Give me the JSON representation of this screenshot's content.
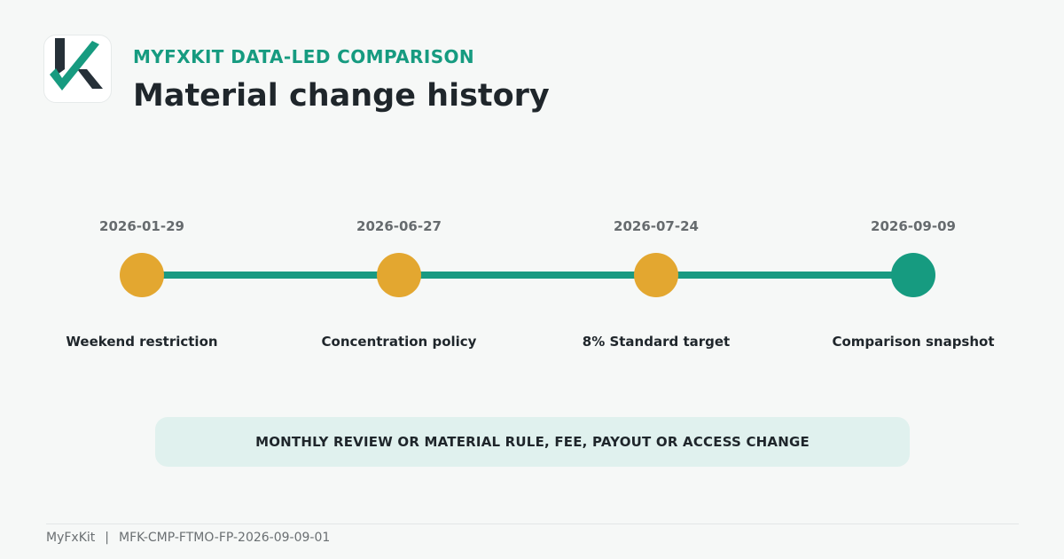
{
  "header": {
    "kicker": "MYFXKIT DATA-LED COMPARISON",
    "title": "Material change history"
  },
  "logo": {
    "icon": "myfxkit-k-checkmark-logo",
    "colors": {
      "letter": "#263038",
      "check": "#179b80"
    }
  },
  "timeline": {
    "line_color": "#1a9a82",
    "events": [
      {
        "date": "2026-01-29",
        "label": "Weekend restriction",
        "color": "#e3a730"
      },
      {
        "date": "2026-06-27",
        "label": "Concentration policy",
        "color": "#e3a730"
      },
      {
        "date": "2026-07-24",
        "label": "8% Standard target",
        "color": "#e3a730"
      },
      {
        "date": "2026-09-09",
        "label": "Comparison snapshot",
        "color": "#169b80"
      }
    ]
  },
  "note": "MONTHLY REVIEW OR MATERIAL RULE, FEE, PAYOUT OR ACCESS CHANGE",
  "footer": {
    "brand": "MyFxKit",
    "separator": "|",
    "reference": "MFK-CMP-FTMO-FP-2026-09-09-01"
  }
}
